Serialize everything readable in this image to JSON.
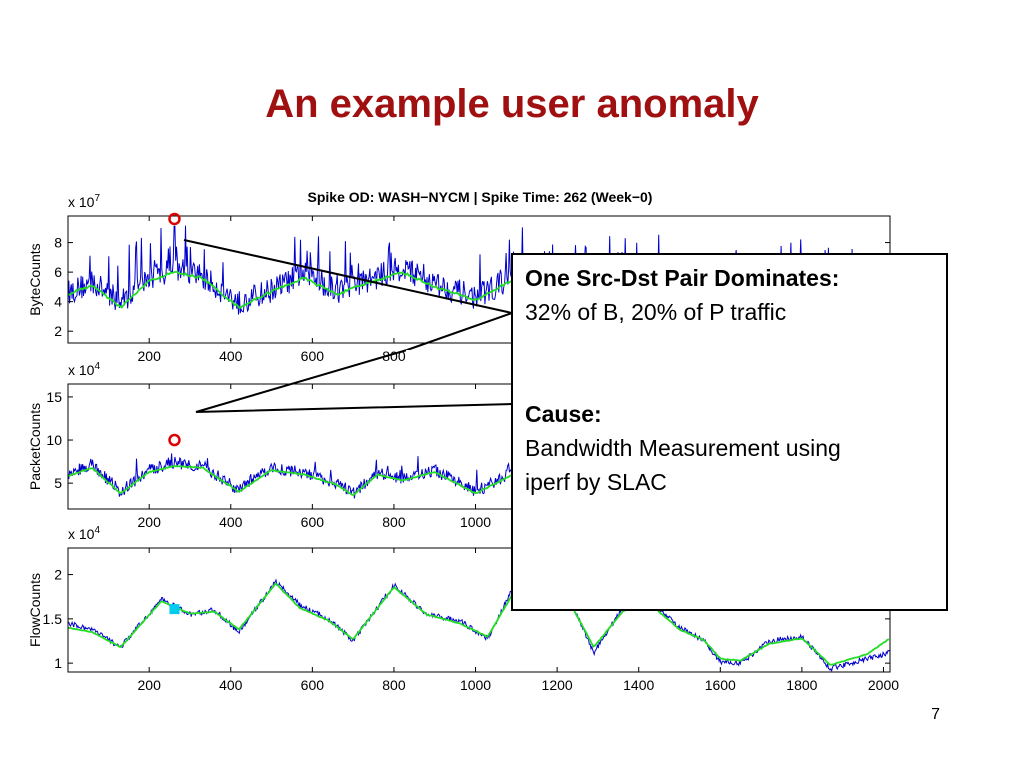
{
  "slide": {
    "title": "An example user anomaly",
    "page_number": "7"
  },
  "callout": {
    "heading1": "One Src-Dst Pair Dominates:",
    "line1": "32% of B,  20% of P traffic",
    "heading2": "Cause:",
    "line2": "Bandwidth Measurement using",
    "line3": "iperf  by SLAC"
  },
  "colors": {
    "title": "#a01010",
    "series_raw": "#0000cc",
    "series_smooth": "#22dd22",
    "spike_marker": "#dd0000",
    "flow_marker": "#00ccee"
  },
  "chart_data": [
    {
      "type": "line",
      "title": "Spike OD: WASH−NYCM |  Spike Time: 262 (Week−0)",
      "ylabel": "ByteCounts",
      "multiplier": "x 10",
      "multiplier_exp": "7",
      "xlim": [
        1,
        2016
      ],
      "ylim": [
        1.2,
        9.8
      ],
      "yticks": [
        2,
        4,
        6,
        8
      ],
      "xticks": [
        200,
        400,
        600,
        800
      ],
      "spike": {
        "x": 262,
        "y": 9.6
      },
      "series": [
        {
          "name": "raw",
          "noise": 0.85,
          "spikes": 0.12,
          "spike_height": 3.2,
          "values": [
            [
              1,
              4.6
            ],
            [
              60,
              5.3
            ],
            [
              130,
              4.0
            ],
            [
              200,
              5.6
            ],
            [
              262,
              6.2
            ],
            [
              330,
              5.7
            ],
            [
              420,
              3.9
            ],
            [
              500,
              4.8
            ],
            [
              580,
              5.9
            ],
            [
              660,
              4.7
            ],
            [
              740,
              5.5
            ],
            [
              820,
              6.3
            ],
            [
              900,
              5.2
            ],
            [
              1000,
              4.3
            ],
            [
              1100,
              5.8
            ],
            [
              1200,
              5.6
            ],
            [
              1400,
              5.4
            ],
            [
              1600,
              5.0
            ],
            [
              1800,
              5.6
            ],
            [
              2016,
              5.2
            ]
          ]
        },
        {
          "name": "smoothed",
          "noise": 0.08,
          "spikes": 0,
          "spike_height": 0,
          "values": [
            [
              1,
              4.5
            ],
            [
              60,
              5.1
            ],
            [
              130,
              3.6
            ],
            [
              200,
              5.4
            ],
            [
              262,
              6.0
            ],
            [
              330,
              5.6
            ],
            [
              420,
              3.6
            ],
            [
              500,
              4.7
            ],
            [
              580,
              5.6
            ],
            [
              660,
              4.5
            ],
            [
              740,
              5.3
            ],
            [
              820,
              6.0
            ],
            [
              900,
              5.0
            ],
            [
              1000,
              4.1
            ],
            [
              1100,
              5.6
            ],
            [
              1200,
              5.4
            ],
            [
              1400,
              5.2
            ],
            [
              1600,
              4.8
            ],
            [
              1800,
              5.4
            ],
            [
              2016,
              5.0
            ]
          ]
        }
      ]
    },
    {
      "type": "line",
      "ylabel": "PacketCounts",
      "multiplier": "x 10",
      "multiplier_exp": "4",
      "xlim": [
        1,
        2016
      ],
      "ylim": [
        2,
        16.5
      ],
      "yticks": [
        5,
        10,
        15
      ],
      "xticks": [
        200,
        400,
        600,
        800,
        1000
      ],
      "spike": {
        "x": 262,
        "y": 10.0
      },
      "series": [
        {
          "name": "raw",
          "noise": 0.7,
          "spikes": 0.05,
          "spike_height": 2.0,
          "values": [
            [
              1,
              6.0
            ],
            [
              60,
              7.2
            ],
            [
              130,
              4.0
            ],
            [
              200,
              6.5
            ],
            [
              262,
              7.4
            ],
            [
              330,
              7.0
            ],
            [
              420,
              4.2
            ],
            [
              500,
              6.8
            ],
            [
              580,
              6.2
            ],
            [
              660,
              5.0
            ],
            [
              700,
              3.8
            ],
            [
              760,
              6.2
            ],
            [
              820,
              5.5
            ],
            [
              900,
              6.5
            ],
            [
              1000,
              4.0
            ],
            [
              1100,
              6.4
            ],
            [
              1300,
              6.0
            ],
            [
              1500,
              5.6
            ],
            [
              1700,
              6.0
            ],
            [
              2016,
              5.8
            ]
          ]
        },
        {
          "name": "smoothed",
          "noise": 0.06,
          "spikes": 0,
          "spike_height": 0,
          "values": [
            [
              1,
              5.8
            ],
            [
              60,
              6.8
            ],
            [
              130,
              3.8
            ],
            [
              200,
              6.3
            ],
            [
              262,
              7.0
            ],
            [
              330,
              6.8
            ],
            [
              420,
              4.0
            ],
            [
              500,
              6.5
            ],
            [
              580,
              6.0
            ],
            [
              660,
              4.8
            ],
            [
              700,
              3.6
            ],
            [
              760,
              6.0
            ],
            [
              820,
              5.3
            ],
            [
              900,
              6.3
            ],
            [
              1000,
              3.8
            ],
            [
              1100,
              6.2
            ],
            [
              1300,
              5.8
            ],
            [
              1500,
              5.4
            ],
            [
              1700,
              5.8
            ],
            [
              2016,
              5.6
            ]
          ]
        }
      ]
    },
    {
      "type": "line",
      "ylabel": "FlowCounts",
      "multiplier": "x 10",
      "multiplier_exp": "4",
      "xlim": [
        1,
        2016
      ],
      "ylim": [
        0.9,
        2.3
      ],
      "yticks": [
        1,
        1.5,
        2
      ],
      "xticks": [
        200,
        400,
        600,
        800,
        1000,
        1200,
        1400,
        1600,
        1800,
        2000
      ],
      "spike": {
        "x": 262,
        "y": 1.61
      },
      "series": [
        {
          "name": "raw",
          "noise": 0.03,
          "spikes": 0,
          "spike_height": 0,
          "values": [
            [
              1,
              1.45
            ],
            [
              60,
              1.38
            ],
            [
              130,
              1.18
            ],
            [
              230,
              1.72
            ],
            [
              300,
              1.55
            ],
            [
              360,
              1.6
            ],
            [
              420,
              1.35
            ],
            [
              510,
              1.92
            ],
            [
              570,
              1.65
            ],
            [
              640,
              1.5
            ],
            [
              700,
              1.25
            ],
            [
              800,
              1.88
            ],
            [
              880,
              1.55
            ],
            [
              960,
              1.48
            ],
            [
              1030,
              1.28
            ],
            [
              1100,
              1.92
            ],
            [
              1160,
              1.68
            ],
            [
              1220,
              1.82
            ],
            [
              1290,
              1.12
            ],
            [
              1360,
              1.62
            ],
            [
              1420,
              1.75
            ],
            [
              1500,
              1.4
            ],
            [
              1560,
              1.25
            ],
            [
              1600,
              1.02
            ],
            [
              1650,
              1.0
            ],
            [
              1720,
              1.25
            ],
            [
              1800,
              1.3
            ],
            [
              1870,
              0.94
            ],
            [
              1960,
              1.05
            ],
            [
              2016,
              1.12
            ]
          ]
        },
        {
          "name": "smoothed",
          "noise": 0.004,
          "spikes": 0,
          "spike_height": 0,
          "values": [
            [
              1,
              1.4
            ],
            [
              60,
              1.35
            ],
            [
              130,
              1.18
            ],
            [
              230,
              1.7
            ],
            [
              300,
              1.56
            ],
            [
              360,
              1.58
            ],
            [
              420,
              1.38
            ],
            [
              510,
              1.9
            ],
            [
              570,
              1.62
            ],
            [
              640,
              1.48
            ],
            [
              700,
              1.27
            ],
            [
              800,
              1.86
            ],
            [
              880,
              1.55
            ],
            [
              960,
              1.45
            ],
            [
              1030,
              1.3
            ],
            [
              1100,
              1.85
            ],
            [
              1160,
              1.66
            ],
            [
              1220,
              1.78
            ],
            [
              1290,
              1.18
            ],
            [
              1360,
              1.58
            ],
            [
              1420,
              1.7
            ],
            [
              1500,
              1.38
            ],
            [
              1560,
              1.26
            ],
            [
              1600,
              1.05
            ],
            [
              1650,
              1.03
            ],
            [
              1720,
              1.22
            ],
            [
              1800,
              1.28
            ],
            [
              1870,
              0.98
            ],
            [
              1960,
              1.1
            ],
            [
              2016,
              1.28
            ]
          ]
        }
      ]
    }
  ]
}
